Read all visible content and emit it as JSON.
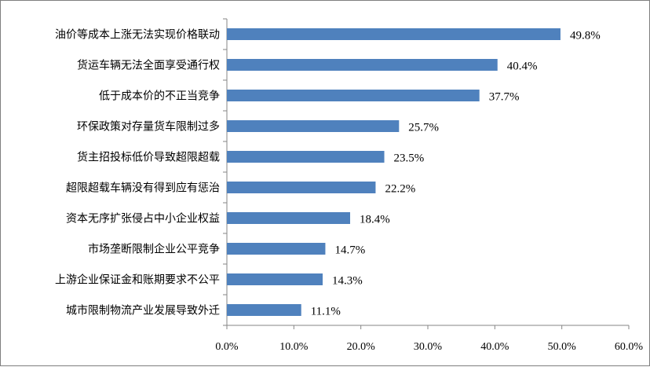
{
  "chart_data": {
    "type": "bar",
    "orientation": "horizontal",
    "title": "",
    "xlabel": "",
    "ylabel": "",
    "categories": [
      "油价等成本上涨无法实现价格联动",
      "货运车辆无法全面享受通行权",
      "低于成本价的不正当竞争",
      "环保政策对存量货车限制过多",
      "货主招投标低价导致超限超载",
      "超限超载车辆没有得到应有惩治",
      "资本无序扩张侵占中小企业权益",
      "市场垄断限制企业公平竞争",
      "上游企业保证金和账期要求不公平",
      "城市限制物流产业发展导致外迁"
    ],
    "values": [
      49.8,
      40.4,
      37.7,
      25.7,
      23.5,
      22.2,
      18.4,
      14.7,
      14.3,
      11.1
    ],
    "value_labels": [
      "49.8%",
      "40.4%",
      "37.7%",
      "25.7%",
      "23.5%",
      "22.2%",
      "18.4%",
      "14.7%",
      "14.3%",
      "11.1%"
    ],
    "xlim": [
      0,
      60
    ],
    "x_ticks": [
      "0.0%",
      "10.0%",
      "20.0%",
      "30.0%",
      "40.0%",
      "50.0%",
      "60.0%"
    ],
    "grid": false,
    "legend": "none",
    "bar_color": "#4f81bd"
  }
}
